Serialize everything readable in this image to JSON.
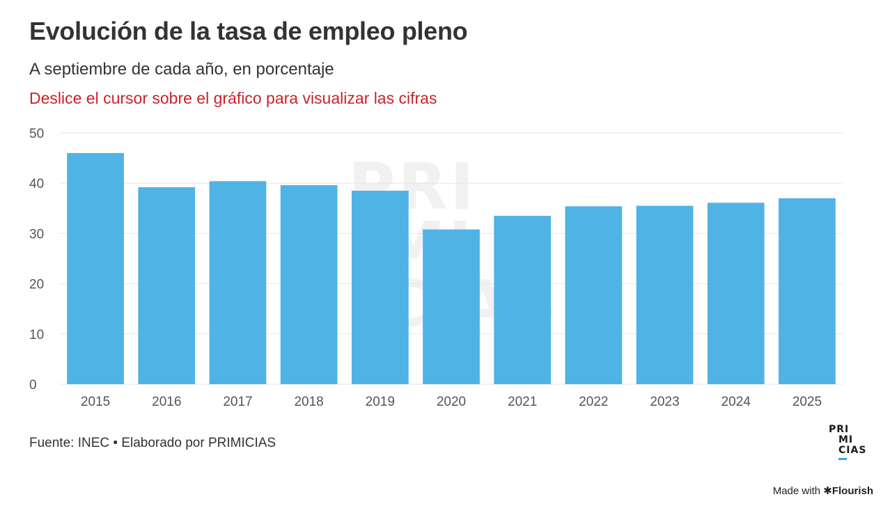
{
  "header": {
    "title": "Evolución de la tasa de empleo pleno",
    "subtitle": "A septiembre de cada año, en porcentaje",
    "hint": "Deslice el cursor sobre el gráfico para visualizar las cifras"
  },
  "colors": {
    "bar": "#4fb3e6",
    "hint": "#cc2229",
    "grid": "#e6e6e6",
    "axis_text": "#555555",
    "watermark": "#f1f1f1",
    "logo_accent": "#2fa7e0"
  },
  "chart_data": {
    "type": "bar",
    "title": "Evolución de la tasa de empleo pleno",
    "subtitle": "A septiembre de cada año, en porcentaje",
    "xlabel": "",
    "ylabel": "",
    "categories": [
      "2015",
      "2016",
      "2017",
      "2018",
      "2019",
      "2020",
      "2021",
      "2022",
      "2023",
      "2024",
      "2025"
    ],
    "values": [
      46.0,
      39.2,
      40.4,
      39.6,
      38.5,
      30.8,
      33.5,
      35.4,
      35.5,
      36.1,
      37.0
    ],
    "ylim": [
      0,
      50
    ],
    "yticks": [
      0,
      10,
      20,
      30,
      40,
      50
    ],
    "grid": true,
    "legend": "none"
  },
  "watermark": {
    "lines": [
      "PRI",
      "MI",
      "CIAS"
    ]
  },
  "footer": {
    "source": "Fuente: INEC • Elaborado por PRIMICIAS",
    "logo_lines": [
      "PRI",
      "MI",
      "CIAS"
    ],
    "made_with": "Made with",
    "made_with_brand": "✱Flourish"
  }
}
